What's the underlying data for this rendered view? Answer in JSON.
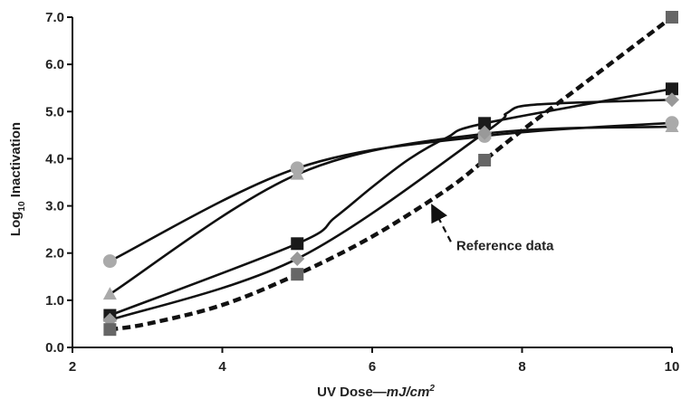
{
  "chart_data": {
    "type": "line",
    "title": "",
    "xlabel": "UV Dose",
    "xlabel_dash": "—",
    "xlabel_unit_base": "mJ/cm",
    "xlabel_unit_sup": "2",
    "ylabel_prefix": "Log",
    "ylabel_sub": "10",
    "ylabel_suffix": " Inactivation",
    "xlim": [
      2,
      10
    ],
    "ylim": [
      0,
      7
    ],
    "xticks": [
      2,
      4,
      6,
      8,
      10
    ],
    "yticks": [
      0,
      1,
      2,
      3,
      4,
      5,
      6,
      7
    ],
    "xtick_labels": [
      "2",
      "4",
      "6",
      "8",
      "10"
    ],
    "ytick_labels": [
      "0.0",
      "1.0",
      "2.0",
      "3.0",
      "4.0",
      "5.0",
      "6.0",
      "7.0"
    ],
    "grid": false,
    "legend": "none",
    "series": [
      {
        "marker": "circle",
        "color": "#aaaaaa",
        "x": [
          2.5,
          5,
          7.5,
          10
        ],
        "y": [
          1.83,
          3.8,
          4.48,
          4.76
        ],
        "line_x": [
          2.5,
          5,
          7.5,
          10
        ],
        "line_y": [
          1.83,
          3.8,
          4.48,
          4.76
        ]
      },
      {
        "marker": "triangle",
        "color": "#aaaaaa",
        "x": [
          2.5,
          5,
          7.5,
          10
        ],
        "y": [
          1.13,
          3.67,
          4.53,
          4.68
        ],
        "line_x": [
          2.5,
          5,
          7.5,
          10
        ],
        "line_y": [
          1.13,
          3.67,
          4.53,
          4.68
        ]
      },
      {
        "marker": "square",
        "color": "#1a1a1a",
        "x": [
          2.5,
          5,
          7.5,
          10
        ],
        "y": [
          0.68,
          2.2,
          4.75,
          5.48
        ],
        "line_x": [
          2.5,
          5,
          5.5,
          6,
          6.5,
          7,
          7.5,
          10
        ],
        "line_y": [
          0.68,
          2.2,
          2.75,
          3.4,
          4.0,
          4.45,
          4.75,
          5.48
        ]
      },
      {
        "marker": "diamond",
        "color": "#999999",
        "x": [
          2.5,
          5,
          7.5,
          10
        ],
        "y": [
          0.58,
          1.88,
          4.55,
          5.25
        ],
        "line_x": [
          2.5,
          5,
          7.5,
          7.8,
          8.2,
          10
        ],
        "line_y": [
          0.58,
          1.88,
          4.55,
          4.97,
          5.15,
          5.25
        ]
      },
      {
        "name": "Reference data",
        "marker": "square",
        "color": "#666666",
        "dashed": true,
        "x": [
          2.5,
          5,
          7.5,
          10
        ],
        "y": [
          0.38,
          1.55,
          3.97,
          7.0
        ],
        "line_x": [
          2.5,
          3,
          4,
          5,
          6,
          7,
          7.5,
          8,
          9,
          10
        ],
        "line_y": [
          0.38,
          0.5,
          0.9,
          1.55,
          2.35,
          3.35,
          3.97,
          4.6,
          5.8,
          7.0
        ]
      }
    ],
    "annotation": {
      "text": "Reference data",
      "target_x": 6.75,
      "target_y": 3.07,
      "text_x": 7.05,
      "text_y": 2.2
    }
  }
}
